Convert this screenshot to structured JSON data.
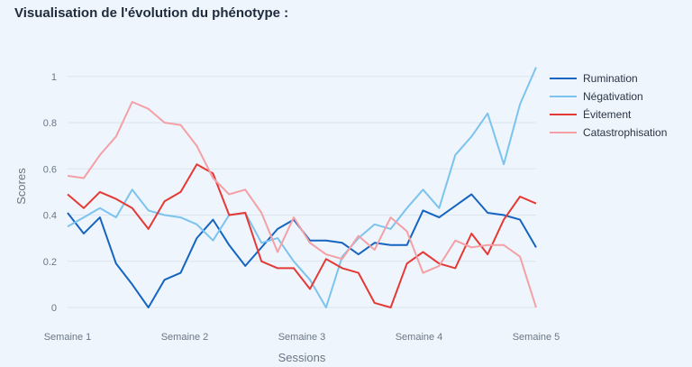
{
  "page": {
    "title": "Visualisation de l'évolution du phénotype :"
  },
  "chart_data": {
    "type": "line",
    "xlabel": "Sessions",
    "ylabel": "Scores",
    "ylim": [
      0,
      1.05
    ],
    "xlim": [
      0,
      31
    ],
    "yticks": [
      0,
      0.2,
      0.4,
      0.6,
      0.8,
      1
    ],
    "xticks": [
      {
        "x": 0,
        "label": "Semaine 1"
      },
      {
        "x": 7.75,
        "label": "Semaine 2"
      },
      {
        "x": 15.5,
        "label": "Semaine 3"
      },
      {
        "x": 23.25,
        "label": "Semaine 4"
      },
      {
        "x": 31,
        "label": "Semaine 5"
      }
    ],
    "grid": "horizontal",
    "legend": "top-right",
    "series": [
      {
        "name": "Rumination",
        "color": "#1565c0",
        "values": [
          0.41,
          0.32,
          0.39,
          0.19,
          0.1,
          0.0,
          0.12,
          0.15,
          0.3,
          0.38,
          0.27,
          0.18,
          0.26,
          0.34,
          0.38,
          0.29,
          0.29,
          0.28,
          0.23,
          0.28,
          0.27,
          0.27,
          0.42,
          0.39,
          0.44,
          0.49,
          0.41,
          0.4,
          0.38,
          0.26
        ]
      },
      {
        "name": "Négativation",
        "color": "#7cc3ee",
        "values": [
          0.35,
          0.39,
          0.43,
          0.39,
          0.51,
          0.42,
          0.4,
          0.39,
          0.36,
          0.29,
          0.4,
          0.41,
          0.28,
          0.3,
          0.2,
          0.12,
          0.0,
          0.22,
          0.3,
          0.36,
          0.34,
          0.43,
          0.51,
          0.43,
          0.66,
          0.74,
          0.84,
          0.62,
          0.88,
          1.04
        ]
      },
      {
        "name": "Évitement",
        "color": "#e53935",
        "values": [
          0.49,
          0.43,
          0.5,
          0.47,
          0.43,
          0.34,
          0.46,
          0.5,
          0.62,
          0.58,
          0.4,
          0.41,
          0.2,
          0.17,
          0.17,
          0.08,
          0.21,
          0.17,
          0.15,
          0.02,
          0.0,
          0.19,
          0.24,
          0.19,
          0.17,
          0.32,
          0.23,
          0.38,
          0.48,
          0.45
        ]
      },
      {
        "name": "Catastrophisation",
        "color": "#f4a0a6",
        "values": [
          0.57,
          0.56,
          0.66,
          0.74,
          0.89,
          0.86,
          0.8,
          0.79,
          0.7,
          0.56,
          0.49,
          0.51,
          0.41,
          0.24,
          0.39,
          0.28,
          0.23,
          0.21,
          0.31,
          0.25,
          0.39,
          0.33,
          0.15,
          0.18,
          0.29,
          0.26,
          0.27,
          0.27,
          0.22,
          0.0
        ]
      }
    ]
  }
}
